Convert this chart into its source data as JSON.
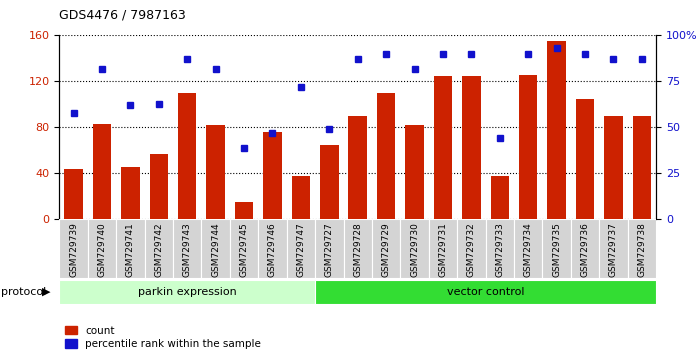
{
  "title": "GDS4476 / 7987163",
  "samples": [
    "GSM729739",
    "GSM729740",
    "GSM729741",
    "GSM729742",
    "GSM729743",
    "GSM729744",
    "GSM729745",
    "GSM729746",
    "GSM729747",
    "GSM729727",
    "GSM729728",
    "GSM729729",
    "GSM729730",
    "GSM729731",
    "GSM729732",
    "GSM729733",
    "GSM729734",
    "GSM729735",
    "GSM729736",
    "GSM729737",
    "GSM729738"
  ],
  "counts": [
    44,
    83,
    46,
    57,
    110,
    82,
    15,
    76,
    38,
    65,
    90,
    110,
    82,
    125,
    125,
    38,
    126,
    155,
    105,
    90,
    90
  ],
  "percentiles": [
    58,
    82,
    62,
    63,
    87,
    82,
    39,
    47,
    72,
    49,
    87,
    90,
    82,
    90,
    90,
    44,
    90,
    93,
    90,
    87,
    87
  ],
  "parkin_count": 9,
  "vector_count": 12,
  "bar_color": "#cc2200",
  "dot_color": "#1111cc",
  "parkin_bg": "#ccffcc",
  "vector_bg": "#33dd33",
  "left_ylim": [
    0,
    160
  ],
  "right_ylim": [
    0,
    100
  ],
  "left_yticks": [
    0,
    40,
    80,
    120,
    160
  ],
  "right_yticks": [
    0,
    25,
    50,
    75,
    100
  ],
  "right_yticklabels": [
    "0",
    "25",
    "50",
    "75",
    "100%"
  ]
}
